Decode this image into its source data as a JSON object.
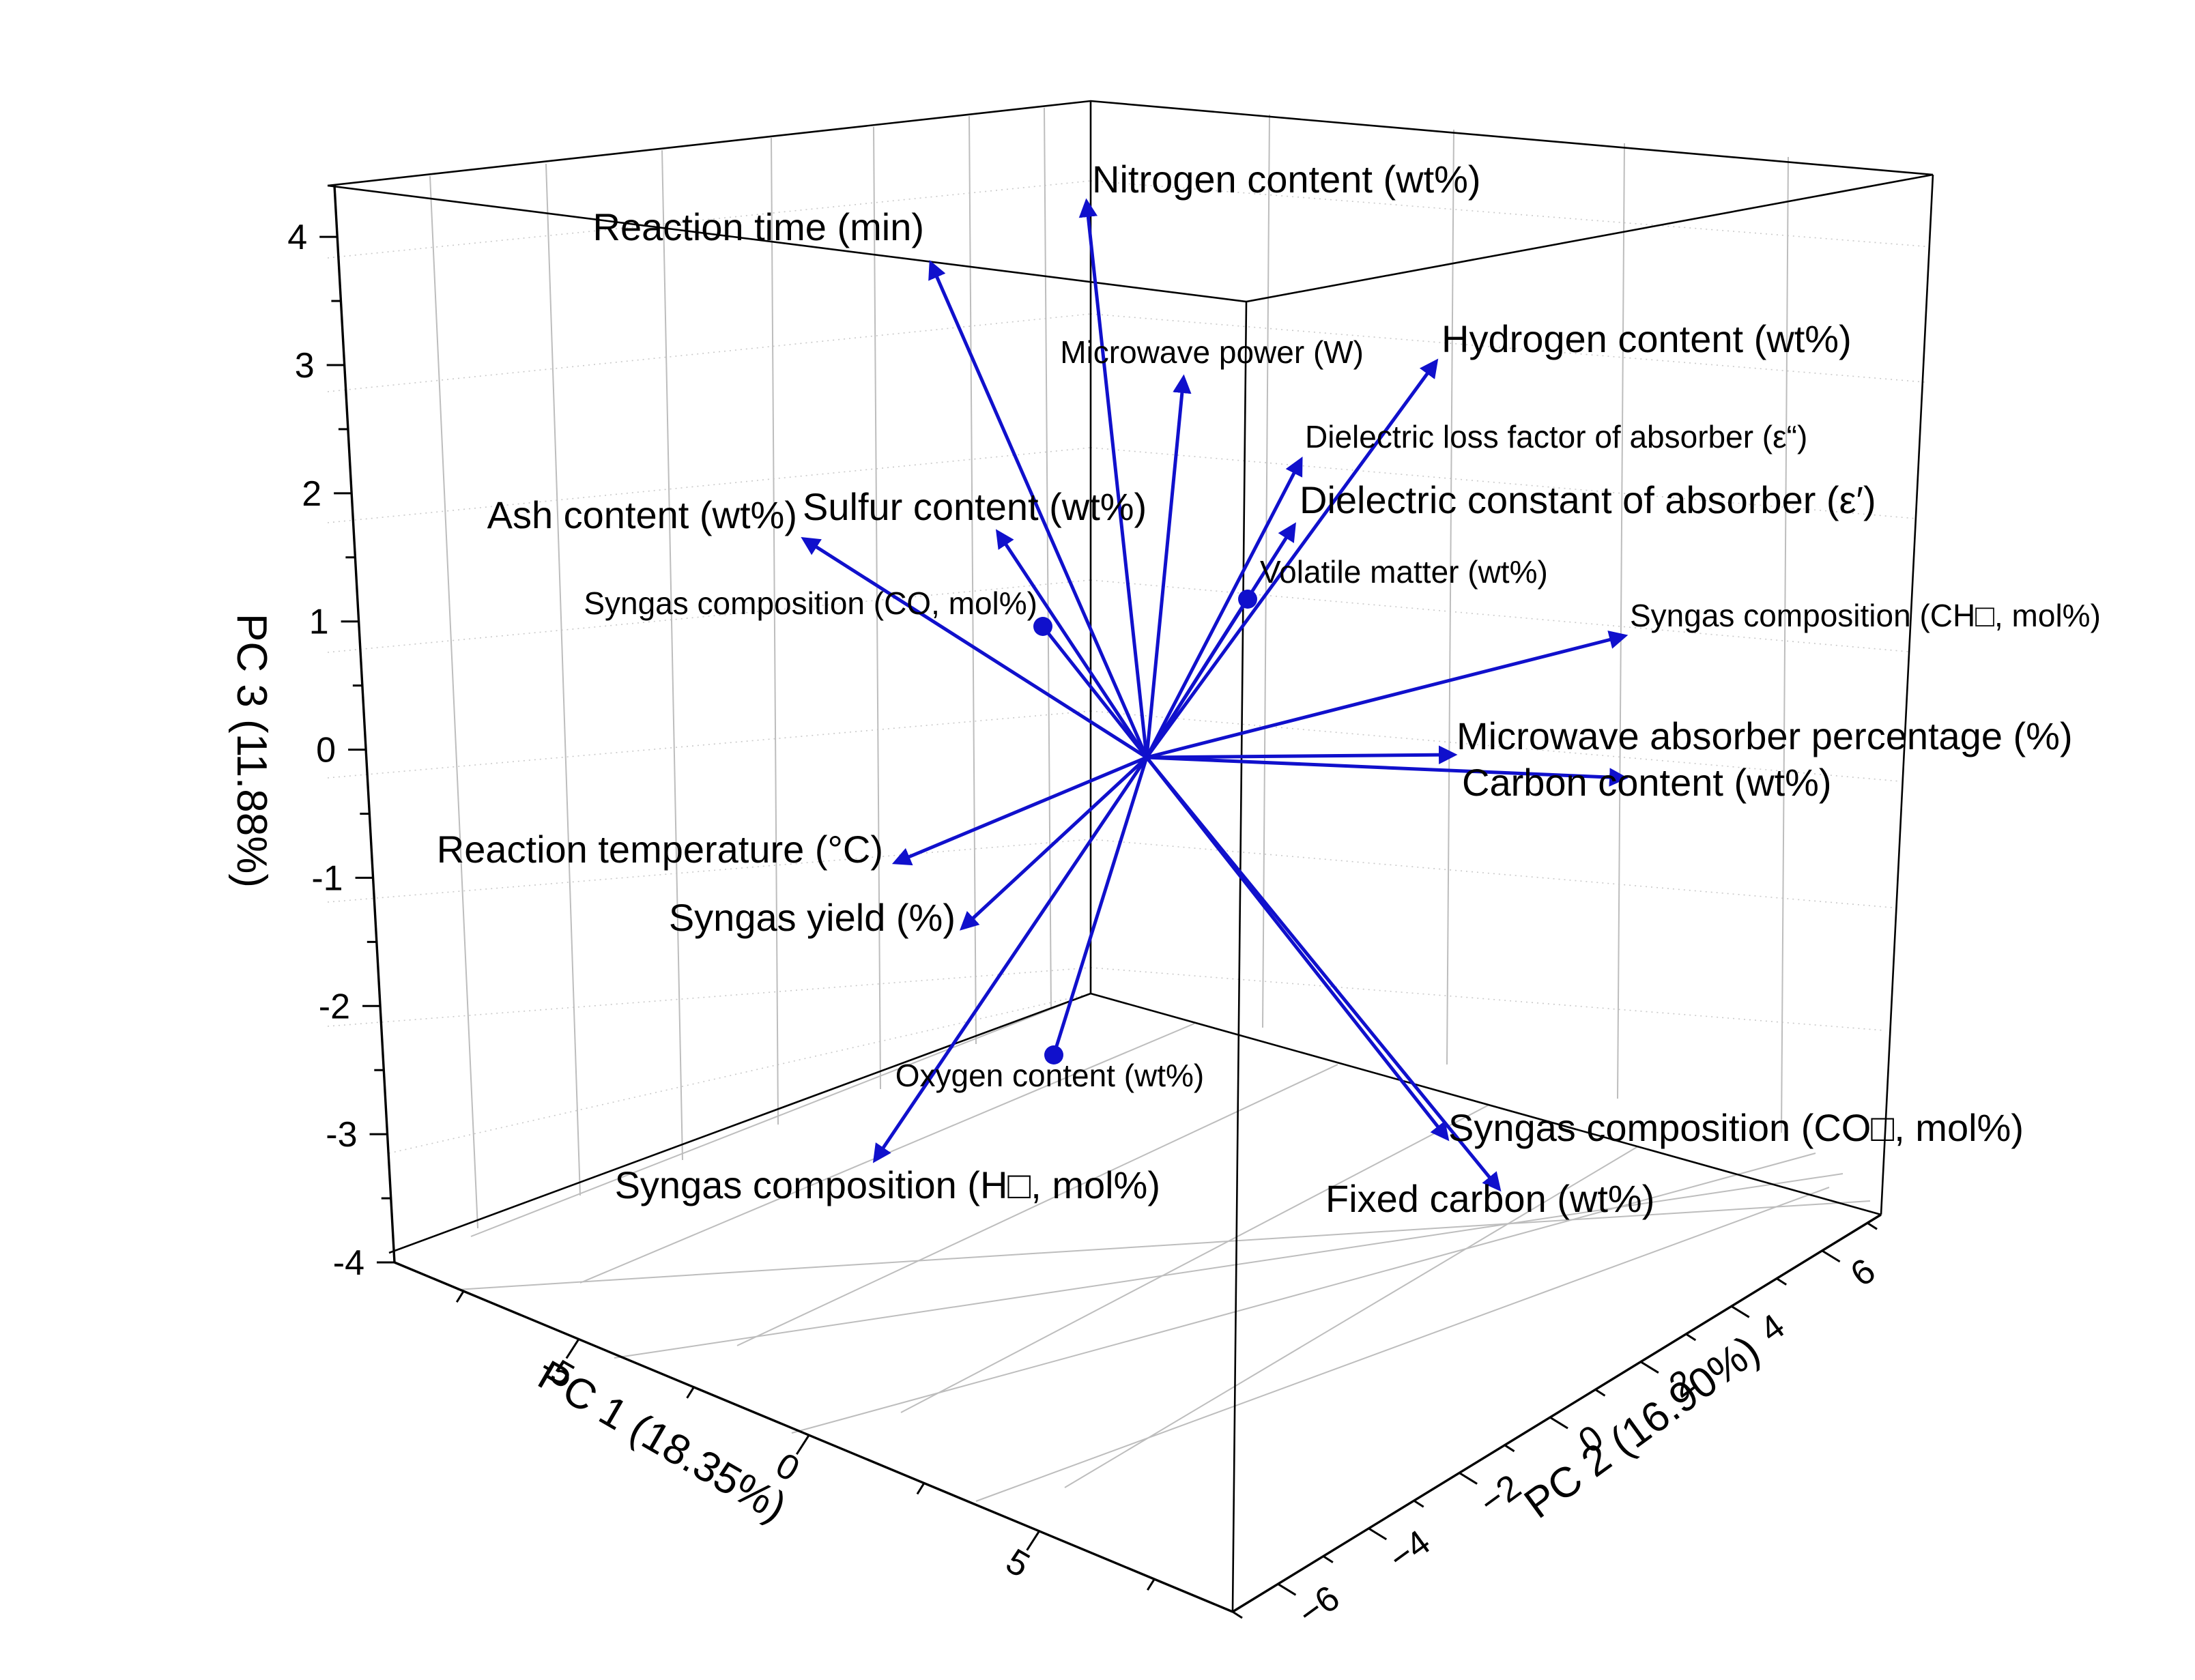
{
  "chart_data": {
    "type": "3d_biplot",
    "axes": {
      "x": {
        "title": "PC 1 (18.35%)",
        "ticks": [
          "-5",
          "0",
          "5"
        ]
      },
      "y": {
        "title": "PC 2 (16.90%)",
        "ticks": [
          "6",
          "4",
          "2",
          "0",
          "-2",
          "-4",
          "-6"
        ]
      },
      "z": {
        "title": "PC 3 (11.88%)",
        "ticks": [
          "4",
          "3",
          "2",
          "1",
          "0",
          "-1",
          "-2",
          "-3",
          "-4"
        ],
        "zlim": [
          -4,
          4.4
        ]
      }
    },
    "color": "#1010cc",
    "vectors": [
      {
        "label": "Nitrogen content (wt%)",
        "pc3": 4.3,
        "head": "arrow",
        "size": "big"
      },
      {
        "label": "Reaction time (min)",
        "pc3": 3.9,
        "head": "arrow",
        "size": "big"
      },
      {
        "label": "Microwave power (W)",
        "pc3": 3.0,
        "head": "arrow",
        "size": "small"
      },
      {
        "label": "Hydrogen content (wt%)",
        "pc3": 3.2,
        "head": "arrow",
        "size": "big"
      },
      {
        "label": "Dielectric loss factor of absorber (ε“)",
        "pc3": 2.5,
        "head": "arrow",
        "size": "small"
      },
      {
        "label": "Dielectric constant of absorber (ε′)",
        "pc3": 1.9,
        "head": "arrow",
        "size": "big"
      },
      {
        "label": "Ash content (wt%)",
        "pc3": 1.8,
        "head": "arrow",
        "size": "big"
      },
      {
        "label": "Sulfur content (wt%)",
        "pc3": 1.9,
        "head": "arrow",
        "size": "big"
      },
      {
        "label": "Volatile matter (wt%)",
        "pc3": 1.3,
        "head": "dot",
        "size": "small"
      },
      {
        "label": "Syngas composition (CO, mol%)",
        "pc3": 1.2,
        "head": "dot",
        "size": "small"
      },
      {
        "label": "Syngas composition (CH□, mol%)",
        "pc3": 1.0,
        "head": "arrow",
        "size": "small"
      },
      {
        "label": "Microwave absorber percentage (%)",
        "pc3": 0.1,
        "head": "arrow",
        "size": "big"
      },
      {
        "label": "Carbon content (wt%)",
        "pc3": -0.1,
        "head": "arrow",
        "size": "big"
      },
      {
        "label": "Reaction temperature (°C)",
        "pc3": -0.6,
        "head": "arrow",
        "size": "big"
      },
      {
        "label": "Syngas yield (%)",
        "pc3": -1.1,
        "head": "arrow",
        "size": "big"
      },
      {
        "label": "Oxygen content (wt%)",
        "pc3": -2.3,
        "head": "dot",
        "size": "small"
      },
      {
        "label": "Syngas composition (CO□, mol%)",
        "pc3": -2.9,
        "head": "arrow",
        "size": "big"
      },
      {
        "label": "Fixed carbon (wt%)",
        "pc3": -3.3,
        "head": "arrow",
        "size": "big"
      },
      {
        "label": "Syngas composition (H□, mol%)",
        "pc3": -3.2,
        "head": "arrow",
        "size": "big"
      }
    ]
  }
}
